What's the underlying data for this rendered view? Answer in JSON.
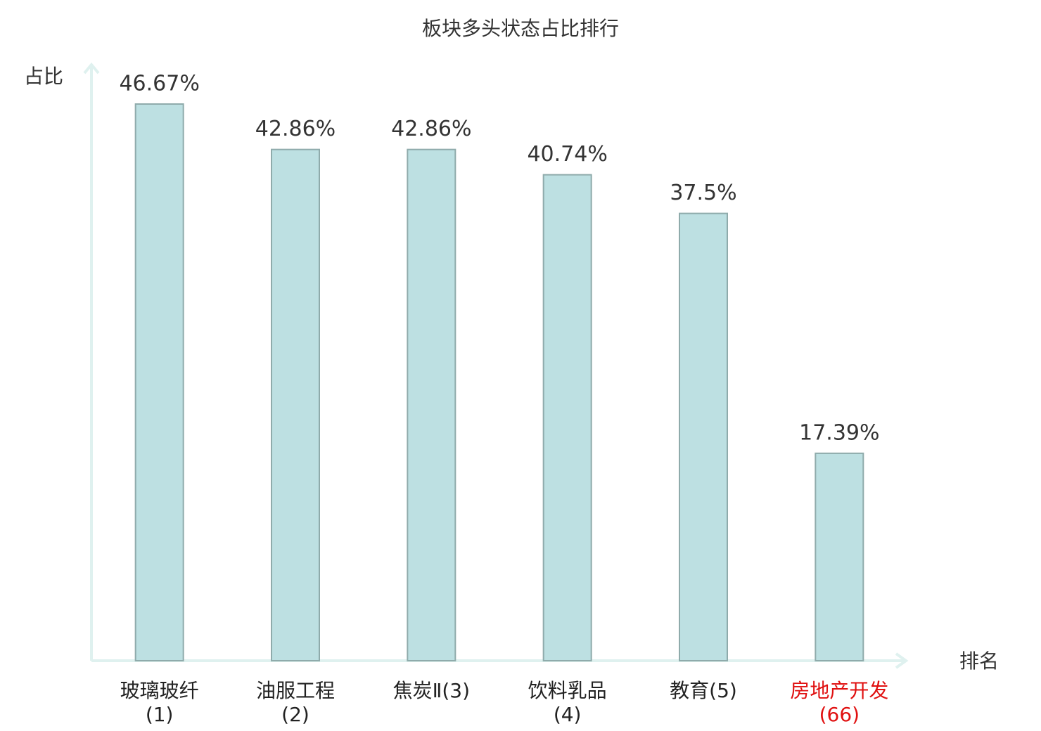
{
  "chart_data": {
    "type": "bar",
    "title": "板块多头状态占比排行",
    "y_label": "占比",
    "x_label": "排名",
    "categories": [
      "玻璃玻纤(1)",
      "油服工程(2)",
      "焦炭Ⅱ(3)",
      "饮料乳品(4)",
      "教育(5)",
      "房地产开发(66)"
    ],
    "values": [
      46.67,
      42.86,
      42.86,
      40.74,
      37.5,
      17.39
    ],
    "value_labels": [
      "46.67%",
      "42.86%",
      "42.86%",
      "40.74%",
      "37.5%",
      "17.39%"
    ],
    "color": "#bde0e2",
    "edge_color": "#8fabab",
    "label_colors": [
      "#222222",
      "#222222",
      "#222222",
      "#222222",
      "#222222",
      "#e01010"
    ],
    "ylim": [
      0,
      50
    ]
  }
}
